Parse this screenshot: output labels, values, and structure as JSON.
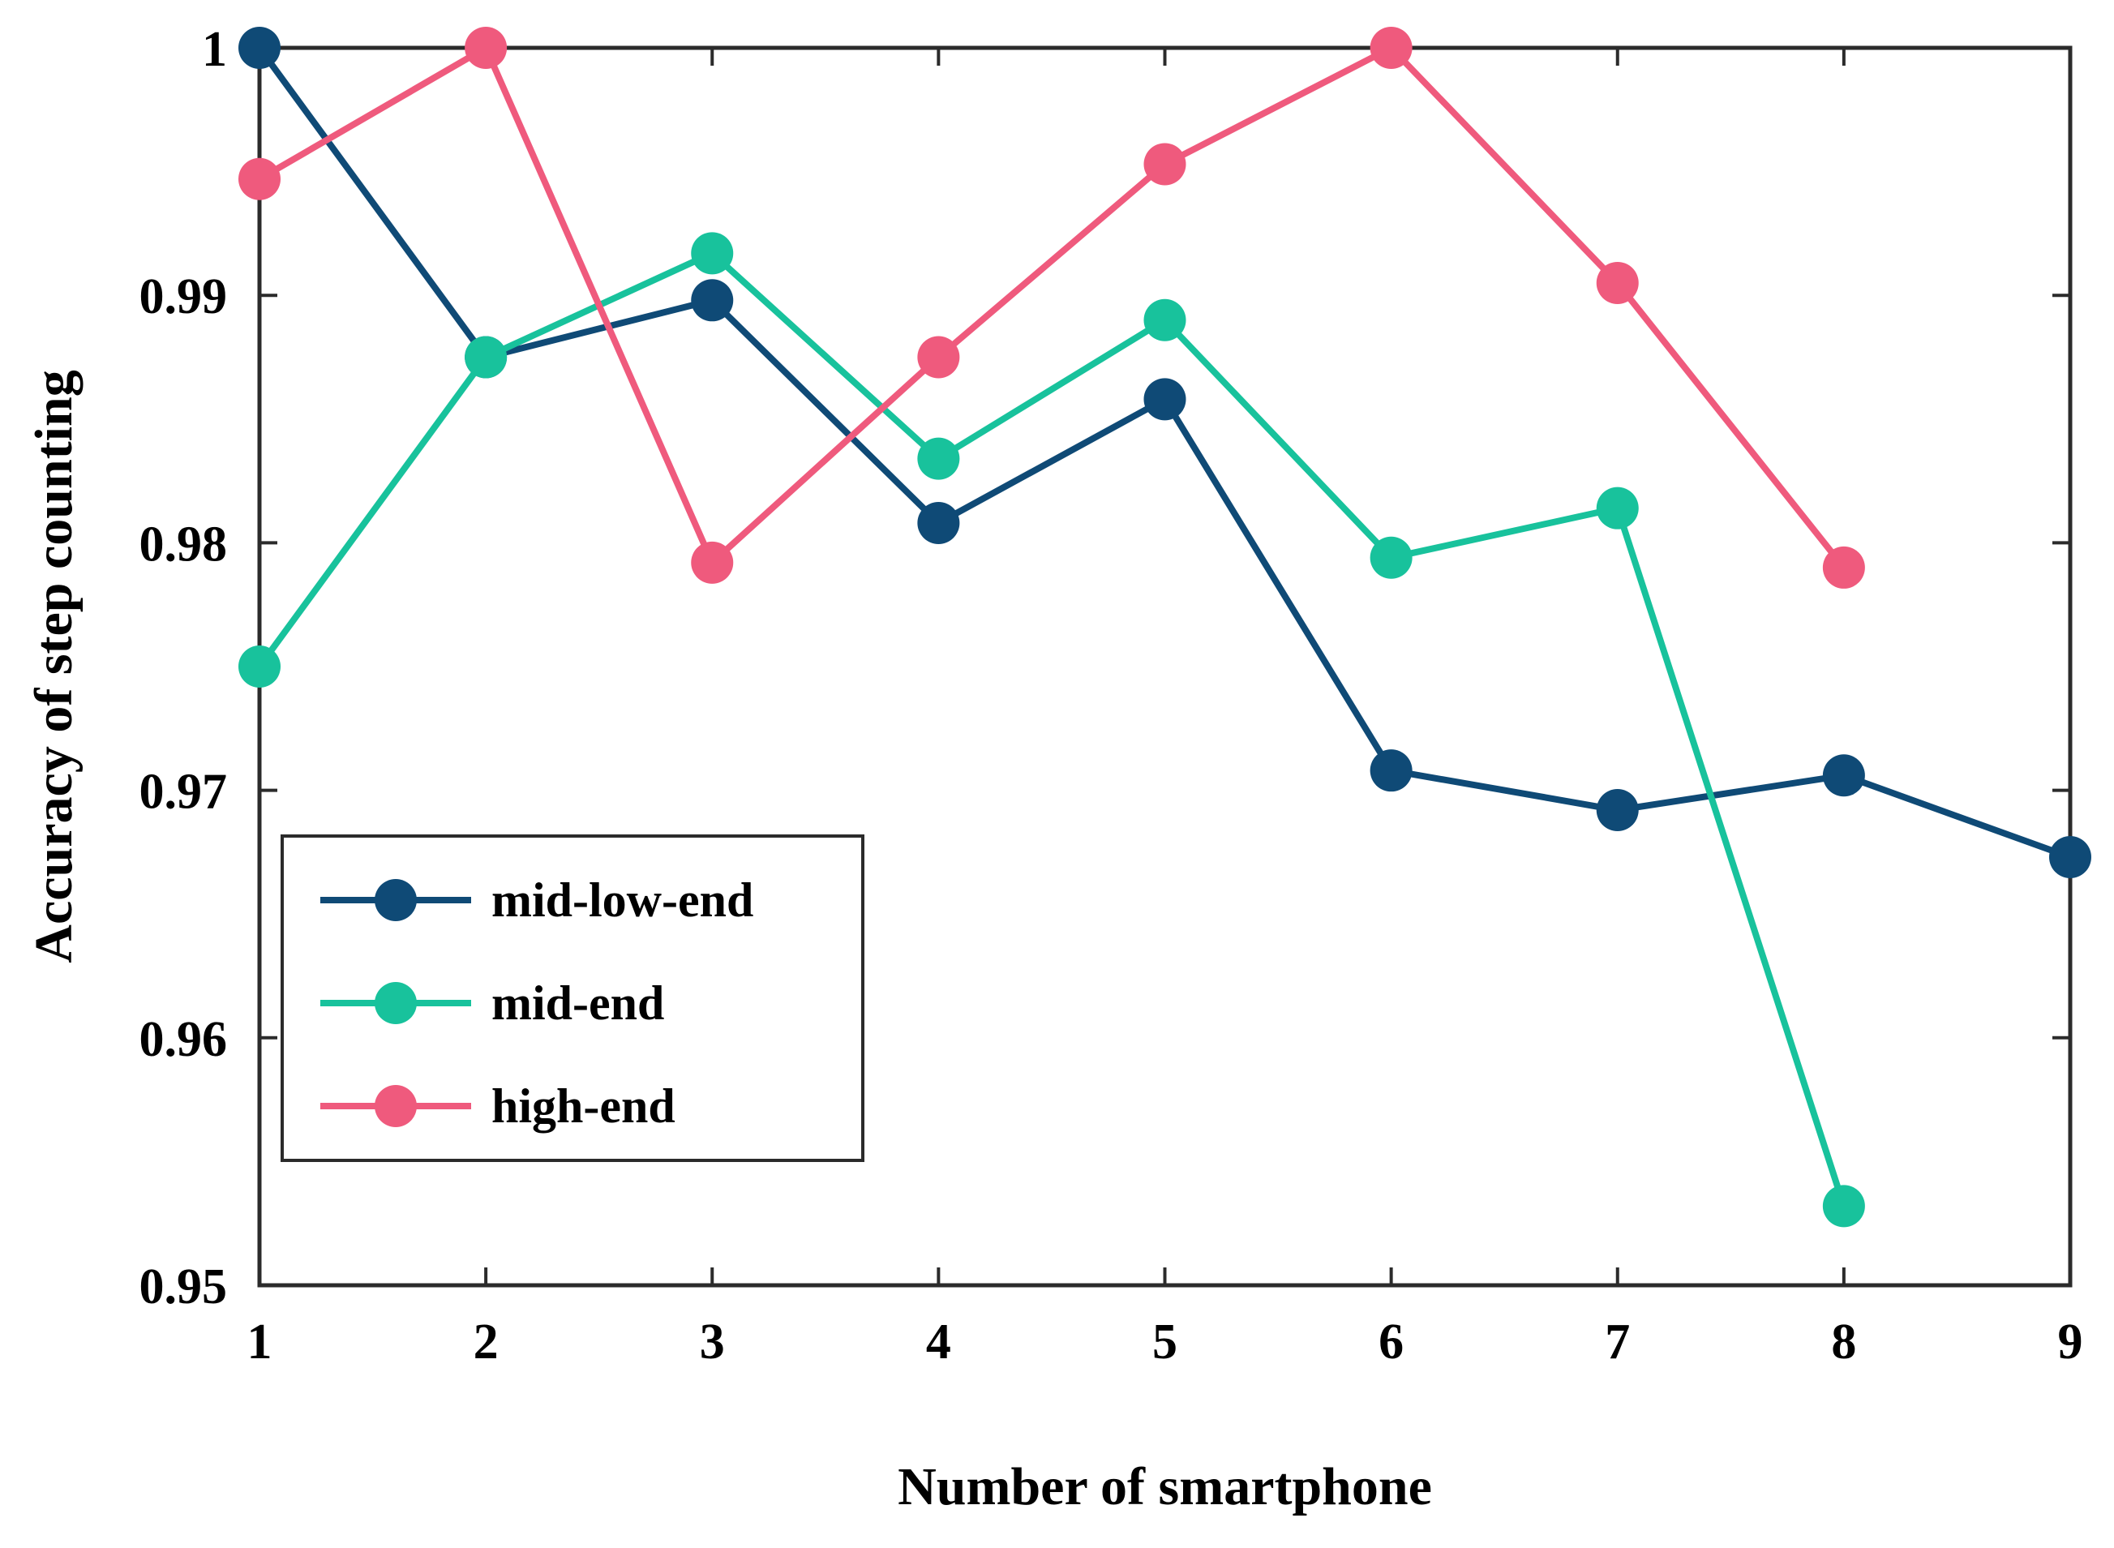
{
  "chart_data": {
    "type": "line",
    "title": "",
    "xlabel": "Number of smartphone",
    "ylabel": "Accuracy of step counting",
    "xlim": [
      1,
      9
    ],
    "ylim": [
      0.95,
      1.0
    ],
    "x_ticks": [
      1,
      2,
      3,
      4,
      5,
      6,
      7,
      8,
      9
    ],
    "y_ticks": [
      0.95,
      0.96,
      0.97,
      0.98,
      0.99,
      1.0
    ],
    "y_tick_labels": [
      "0.95",
      "0.96",
      "0.97",
      "0.98",
      "0.99",
      "1"
    ],
    "grid": false,
    "legend_position": "bottom-left",
    "series": [
      {
        "name": "mid-low-end",
        "color": "#0f4a76",
        "x": [
          1,
          2,
          3,
          4,
          5,
          6,
          7,
          8,
          9
        ],
        "values": [
          1.0,
          0.9875,
          0.9898,
          0.9808,
          0.9858,
          0.9708,
          0.9692,
          0.9706,
          0.9673
        ]
      },
      {
        "name": "mid-end",
        "color": "#18c29c",
        "x": [
          1,
          2,
          3,
          4,
          5,
          6,
          7,
          8
        ],
        "values": [
          0.975,
          0.9875,
          0.9917,
          0.9834,
          0.989,
          0.9794,
          0.9814,
          0.9532
        ]
      },
      {
        "name": "high-end",
        "color": "#ef5a7d",
        "x": [
          1,
          2,
          3,
          4,
          5,
          6,
          7,
          8
        ],
        "values": [
          0.9947,
          1.0,
          0.9792,
          0.9875,
          0.9953,
          1.0,
          0.9905,
          0.979
        ]
      }
    ]
  }
}
